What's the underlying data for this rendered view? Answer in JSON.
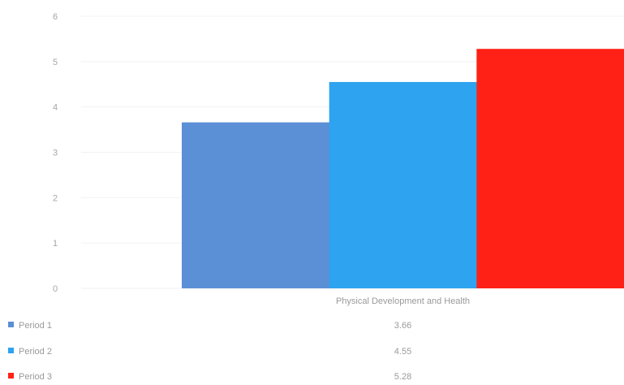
{
  "chart_data": {
    "type": "bar",
    "title": "",
    "xlabel": "",
    "ylabel": "",
    "categories": [
      "Physical Development and Health"
    ],
    "ylim": [
      0,
      6
    ],
    "yticks": [
      0,
      1,
      2,
      3,
      4,
      5,
      6
    ],
    "grid": true,
    "legend": "bottom-left data table",
    "series": [
      {
        "name": "Period 1",
        "values": [
          3.66
        ],
        "display_values": [
          "3.66"
        ],
        "color": "#5b8fd6"
      },
      {
        "name": "Period 2",
        "values": [
          4.55
        ],
        "display_values": [
          "4.55"
        ],
        "color": "#2ea3ef"
      },
      {
        "name": "Period 3",
        "values": [
          5.28
        ],
        "display_values": [
          "5.28"
        ],
        "color": "#ff2115"
      }
    ]
  }
}
